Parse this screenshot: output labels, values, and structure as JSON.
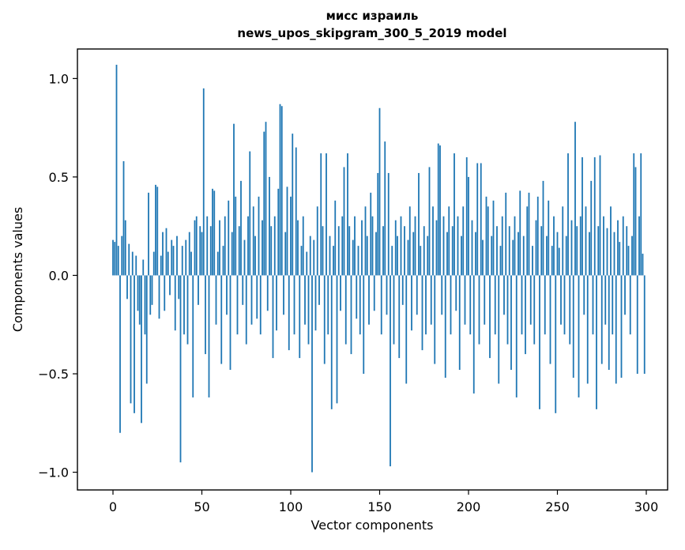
{
  "chart_data": {
    "type": "bar",
    "title": "мисс израиль",
    "subtitle": "news_upos_skipgram_300_5_2019 model",
    "xlabel": "Vector components",
    "ylabel": "Components values",
    "bar_color": "#1f77b4",
    "grid": false,
    "legend": "none",
    "xlim": [
      -20,
      312
    ],
    "ylim": [
      -1.09,
      1.15
    ],
    "xticks": {
      "values": [
        0,
        50,
        100,
        150,
        200,
        250,
        300
      ],
      "labels": [
        "0",
        "50",
        "100",
        "150",
        "200",
        "250",
        "300"
      ]
    },
    "yticks": {
      "values": [
        1.0,
        0.5,
        0.0,
        -0.5,
        -1.0
      ],
      "labels": [
        "1.0",
        "0.5",
        "0.0",
        "−0.5",
        "−1.0"
      ]
    },
    "values": [
      0.18,
      0.17,
      1.07,
      0.15,
      -0.8,
      0.2,
      0.58,
      0.28,
      -0.12,
      0.16,
      -0.65,
      0.12,
      -0.7,
      0.1,
      -0.18,
      -0.25,
      -0.75,
      0.08,
      -0.3,
      -0.55,
      0.42,
      -0.2,
      -0.15,
      0.12,
      0.46,
      0.45,
      -0.22,
      0.1,
      0.22,
      -0.18,
      0.24,
      0.12,
      -0.1,
      0.18,
      0.15,
      -0.28,
      0.2,
      -0.12,
      -0.95,
      0.15,
      -0.3,
      0.18,
      -0.35,
      0.22,
      0.12,
      -0.62,
      0.28,
      0.3,
      -0.15,
      0.25,
      0.22,
      0.95,
      -0.4,
      0.3,
      -0.62,
      0.25,
      0.44,
      0.43,
      -0.25,
      0.12,
      0.28,
      -0.45,
      0.15,
      0.3,
      -0.2,
      0.38,
      -0.48,
      0.22,
      0.77,
      0.4,
      -0.3,
      0.25,
      0.48,
      -0.15,
      0.18,
      -0.35,
      0.3,
      0.63,
      -0.25,
      0.35,
      0.2,
      -0.22,
      0.4,
      -0.3,
      0.28,
      0.73,
      0.78,
      -0.18,
      0.5,
      0.25,
      -0.42,
      0.3,
      -0.28,
      0.44,
      0.87,
      0.86,
      -0.2,
      0.22,
      0.45,
      -0.38,
      0.4,
      0.72,
      -0.3,
      0.65,
      0.28,
      -0.42,
      0.15,
      0.3,
      -0.25,
      0.12,
      -0.35,
      0.2,
      -1.0,
      0.18,
      -0.28,
      0.35,
      -0.15,
      0.62,
      0.25,
      -0.45,
      0.62,
      -0.3,
      0.2,
      -0.68,
      0.15,
      0.38,
      -0.65,
      0.25,
      -0.18,
      0.3,
      0.55,
      -0.35,
      0.62,
      0.25,
      -0.4,
      0.18,
      0.3,
      -0.22,
      0.15,
      -0.3,
      0.28,
      -0.5,
      0.35,
      0.2,
      -0.25,
      0.42,
      0.3,
      -0.18,
      0.22,
      0.52,
      0.85,
      -0.3,
      0.25,
      0.68,
      -0.2,
      0.52,
      -0.97,
      0.15,
      -0.35,
      0.28,
      0.2,
      -0.42,
      0.3,
      -0.15,
      0.25,
      -0.55,
      0.18,
      0.35,
      -0.28,
      0.22,
      0.3,
      -0.2,
      0.52,
      0.15,
      -0.38,
      0.25,
      -0.3,
      0.2,
      0.55,
      -0.25,
      0.35,
      -0.45,
      0.28,
      0.67,
      0.66,
      -0.2,
      0.3,
      -0.52,
      0.22,
      0.35,
      -0.3,
      0.25,
      0.62,
      -0.18,
      0.3,
      -0.48,
      0.2,
      0.35,
      -0.25,
      0.6,
      0.5,
      -0.3,
      0.28,
      -0.6,
      0.22,
      0.57,
      -0.35,
      0.57,
      0.18,
      -0.25,
      0.4,
      0.35,
      -0.42,
      0.2,
      0.38,
      -0.3,
      0.25,
      -0.55,
      0.15,
      0.3,
      -0.2,
      0.42,
      -0.35,
      0.25,
      -0.48,
      0.18,
      0.3,
      -0.62,
      0.22,
      0.43,
      -0.3,
      0.2,
      -0.4,
      0.35,
      0.42,
      -0.25,
      0.15,
      -0.35,
      0.28,
      0.4,
      -0.68,
      0.25,
      0.48,
      -0.3,
      0.2,
      0.38,
      -0.45,
      0.15,
      0.3,
      -0.7,
      0.22,
      0.14,
      -0.25,
      0.35,
      -0.3,
      0.2,
      0.62,
      -0.35,
      0.28,
      -0.52,
      0.78,
      0.25,
      -0.62,
      0.3,
      0.6,
      -0.2,
      0.35,
      -0.55,
      0.22,
      0.48,
      -0.3,
      0.6,
      -0.68,
      0.25,
      0.61,
      -0.45,
      0.3,
      -0.25,
      0.24,
      -0.48,
      0.35,
      -0.3,
      0.22,
      -0.55,
      0.28,
      0.17,
      -0.52,
      0.3,
      -0.2,
      0.25,
      0.15,
      -0.3,
      0.2,
      0.62,
      0.55,
      -0.5,
      0.3,
      0.62,
      0.11,
      -0.5
    ]
  }
}
